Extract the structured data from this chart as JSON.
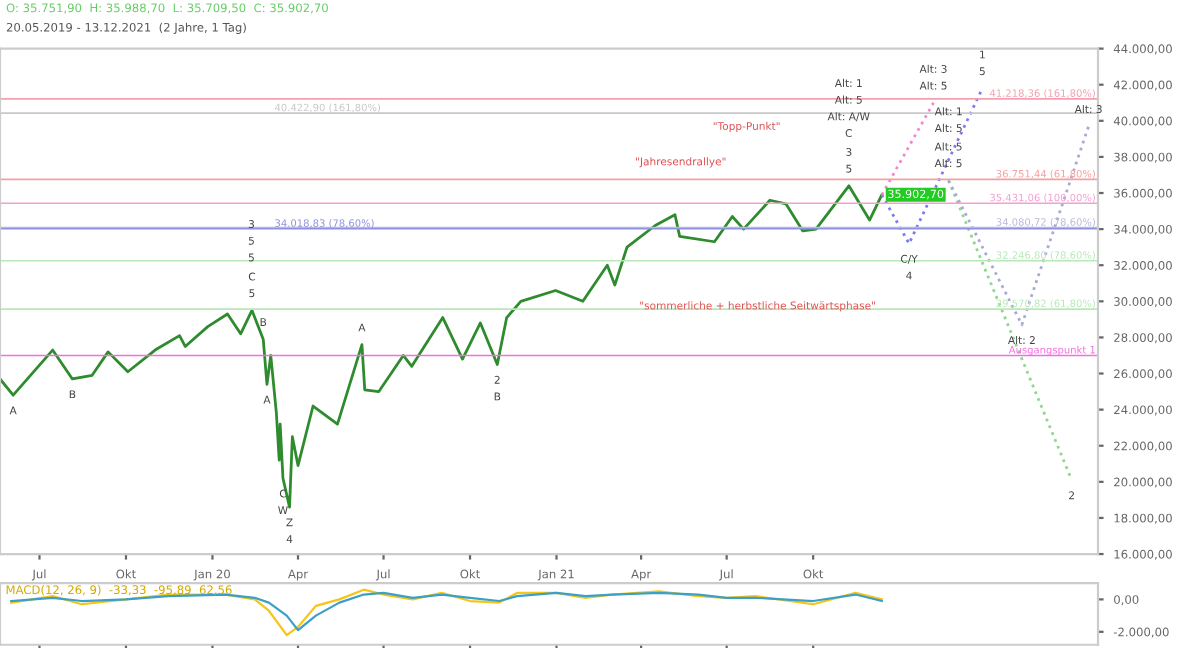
{
  "chart_data": [
    {
      "type": "line",
      "title": "O: 35.751,90  H: 35.988,70  L: 35.709,50  C: 35.902,70",
      "subtitle": "20.05.2019 - 13.12.2021  (2 Jahre, 1 Tag)",
      "xlim": [
        "2019-05-20",
        "2022-07-31"
      ],
      "ylim": [
        16000,
        44000
      ],
      "xticks": [
        {
          "value": "2019-07-01",
          "label": "Jul"
        },
        {
          "value": "2019-10-01",
          "label": "Okt"
        },
        {
          "value": "2020-01-01",
          "label": "Jan 20"
        },
        {
          "value": "2020-04-01",
          "label": "Apr"
        },
        {
          "value": "2020-07-01",
          "label": "Jul"
        },
        {
          "value": "2020-10-01",
          "label": "Okt"
        },
        {
          "value": "2021-01-01",
          "label": "Jan 21"
        },
        {
          "value": "2021-04-01",
          "label": "Apr"
        },
        {
          "value": "2021-07-01",
          "label": "Jul"
        },
        {
          "value": "2021-10-01",
          "label": "Okt"
        }
      ],
      "yticks": [
        {
          "value": 16000,
          "label": "16.000,00"
        },
        {
          "value": 18000,
          "label": "18.000,00"
        },
        {
          "value": 20000,
          "label": "20.000,00"
        },
        {
          "value": 22000,
          "label": "22.000,00"
        },
        {
          "value": 24000,
          "label": "24.000,00"
        },
        {
          "value": 26000,
          "label": "26.000,00"
        },
        {
          "value": 28000,
          "label": "28.000,00"
        },
        {
          "value": 30000,
          "label": "30.000,00"
        },
        {
          "value": 32000,
          "label": "32.000,00"
        },
        {
          "value": 34000,
          "label": "34.000,00"
        },
        {
          "value": 36000,
          "label": "36.000,00"
        },
        {
          "value": 38000,
          "label": "38.000,00"
        },
        {
          "value": 40000,
          "label": "40.000,00"
        },
        {
          "value": 42000,
          "label": "42.000,00"
        },
        {
          "value": 44000,
          "label": "44.000,00"
        }
      ],
      "grid": false,
      "legend": false,
      "series": [
        {
          "color": "#2e8b2e",
          "x": [
            "2019-05-20",
            "2019-06-03",
            "2019-07-15",
            "2019-08-05",
            "2019-08-26",
            "2019-09-12",
            "2019-10-03",
            "2019-11-01",
            "2019-11-27",
            "2019-12-03",
            "2019-12-27",
            "2020-01-17",
            "2020-01-31",
            "2020-02-12",
            "2020-02-24",
            "2020-02-28",
            "2020-03-03",
            "2020-03-09",
            "2020-03-12",
            "2020-03-13",
            "2020-03-16",
            "2020-03-23",
            "2020-03-26",
            "2020-04-01",
            "2020-04-17",
            "2020-05-13",
            "2020-06-08",
            "2020-06-11",
            "2020-06-26",
            "2020-07-22",
            "2020-07-31",
            "2020-09-02",
            "2020-09-23",
            "2020-10-12",
            "2020-10-30",
            "2020-11-09",
            "2020-11-24",
            "2020-12-31",
            "2021-01-29",
            "2021-02-24",
            "2021-03-04",
            "2021-03-17",
            "2021-04-16",
            "2021-05-07",
            "2021-05-12",
            "2021-06-18",
            "2021-07-07",
            "2021-07-19",
            "2021-08-16",
            "2021-09-02",
            "2021-09-20",
            "2021-10-04",
            "2021-11-08",
            "2021-11-30",
            "2021-12-13"
          ],
          "values": [
            25700,
            24800,
            27300,
            25700,
            25900,
            27200,
            26100,
            27300,
            28100,
            27500,
            28600,
            29300,
            28200,
            29500,
            27900,
            25400,
            27000,
            23800,
            21200,
            23200,
            20200,
            18600,
            22500,
            20900,
            24200,
            23200,
            27600,
            25100,
            25000,
            27000,
            26400,
            29100,
            26800,
            28800,
            26500,
            29100,
            30000,
            30600,
            30000,
            32000,
            30900,
            33000,
            34200,
            34800,
            33600,
            33300,
            34700,
            34000,
            35600,
            35400,
            33900,
            34000,
            36400,
            34500,
            35900
          ]
        },
        {
          "color": "#7b7bef",
          "line_style": "dotted",
          "x": [
            "2021-12-13",
            "2022-01-11",
            "2022-03-30"
          ],
          "values": [
            35900,
            33200,
            41800
          ]
        },
        {
          "color": "#f08ad0",
          "line_style": "dotted",
          "x": [
            "2021-12-13",
            "2022-02-06"
          ],
          "values": [
            35900,
            41000
          ]
        },
        {
          "color": "#8fd88f",
          "line_style": "dotted",
          "x": [
            "2022-02-22",
            "2022-07-03"
          ],
          "values": [
            36700,
            20100
          ]
        },
        {
          "color": "#a9a9d9",
          "line_style": "dotted",
          "x": [
            "2022-02-22",
            "2022-05-11",
            "2022-07-21"
          ],
          "values": [
            36700,
            28700,
            39700
          ]
        }
      ],
      "ref_lines": [
        {
          "axis": "y",
          "value": 41218.36,
          "label": "41.218,36 (161,80%)",
          "color": "#f4a0b0"
        },
        {
          "axis": "y",
          "value": 40422.9,
          "label": "40.422,90 (161,80%)",
          "color": "#c8c8c8"
        },
        {
          "axis": "y",
          "value": 36751.44,
          "label": "36.751,44 (61,80%)",
          "color": "#f4a0a0"
        },
        {
          "axis": "y",
          "value": 35431.06,
          "label": "35.431,06 (100,00%)",
          "color": "#f4a0d0"
        },
        {
          "axis": "y",
          "value": 34080.72,
          "label": "34.080,72 (78,60%)",
          "color": "#b8b8d8"
        },
        {
          "axis": "y",
          "value": 34018.83,
          "label": "34.018,83 (78,60%)",
          "color": "#9090e0"
        },
        {
          "axis": "y",
          "value": 32246.8,
          "label": "32.246,80 (78,60%)",
          "color": "#b8e8b8"
        },
        {
          "axis": "y",
          "value": 29570.82,
          "label": "29.570,82 (61,80%)",
          "color": "#b8e8b8"
        },
        {
          "axis": "y",
          "value": 27000,
          "label": "Ausgangspunkt 1",
          "color": "#f070e0"
        }
      ],
      "annotations": [
        {
          "text": "35.902,70",
          "x": "2021-12-13",
          "y": 35900
        },
        {
          "text": "5",
          "x": "2021-11-08",
          "y": 36400
        },
        {
          "text": "3",
          "x": "2021-11-08",
          "y": 36400
        },
        "C",
        "Alt: A/W",
        "Alt: 5",
        "Alt: 1",
        {
          "text": "Alt: 5",
          "x": "2022-02-06",
          "y": 41000
        },
        {
          "text": "Alt: 3",
          "x": "2022-02-06",
          "y": 41000
        },
        {
          "text": "5",
          "x": "2022-03-30",
          "y": 41800
        },
        {
          "text": "1",
          "x": "2022-03-30",
          "y": 41800
        },
        {
          "text": "Alt: 5",
          "x": "2022-02-22",
          "y": 36700
        },
        {
          "text": "Alt: 5",
          "x": "2022-02-22",
          "y": 36700
        },
        "Alt: 5",
        "Alt: 1",
        {
          "text": "Alt: 3",
          "x": "2022-07-21",
          "y": 39700
        },
        {
          "text": "Alt: 2",
          "x": "2022-05-11",
          "y": 28700
        },
        {
          "text": "2",
          "x": "2022-07-03",
          "y": 20100
        },
        {
          "text": "C/Y",
          "x": "2022-01-11",
          "y": 33200
        },
        {
          "text": "4",
          "x": "2022-01-11",
          "y": 33200
        },
        {
          "text": "5",
          "x": "2020-02-12",
          "y": 29500
        },
        {
          "text": "C",
          "x": "2020-02-12",
          "y": 29500
        },
        "5",
        "5",
        "3",
        {
          "text": "B",
          "x": "2020-02-24",
          "y": 27900
        },
        {
          "text": "A",
          "x": "2020-02-28",
          "y": 25400
        },
        {
          "text": "C",
          "x": "2020-03-16",
          "y": 20200
        },
        {
          "text": "W",
          "x": "2020-03-16",
          "y": 20200
        },
        {
          "text": "Z",
          "x": "2020-03-23",
          "y": 18600
        },
        {
          "text": "4",
          "x": "2020-03-23",
          "y": 18600
        },
        {
          "text": "A",
          "x": "2020-06-08",
          "y": 27600
        },
        {
          "text": "2",
          "x": "2020-10-30",
          "y": 26500
        },
        {
          "text": "B",
          "x": "2020-10-30",
          "y": 26500
        },
        {
          "text": "A",
          "x": "2019-06-03",
          "y": 24800
        },
        {
          "text": "B",
          "x": "2019-08-05",
          "y": 25700
        },
        "\"Jahresendrallye\"",
        "\"Topp-Punkt\"",
        "\"sommerliche + herbstliche Seitwärtsphase\""
      ]
    },
    {
      "type": "line",
      "title": "MACD(12, 26, 9)  -33,33  -95,89  62,56",
      "tick_labels": "y",
      "xlim": [
        "2019-05-20",
        "2022-07-31"
      ],
      "ylim": [
        -2800,
        1000
      ],
      "yticks": [
        {
          "value": 0,
          "label": "0,00"
        },
        {
          "value": -2000,
          "label": "-2.000,00"
        }
      ],
      "xticks": [
        {
          "value": "2019-07-01",
          "label": null
        },
        {
          "value": "2019-10-01",
          "label": null
        },
        {
          "value": "2020-01-01",
          "label": null
        },
        {
          "value": "2020-04-01",
          "label": null
        },
        {
          "value": "2020-07-01",
          "label": null
        },
        {
          "value": "2020-10-01",
          "label": null
        },
        {
          "value": "2021-01-01",
          "label": null
        },
        {
          "value": "2021-04-01",
          "label": null
        },
        {
          "value": "2021-07-01",
          "label": null
        },
        {
          "value": "2021-10-01",
          "label": null
        }
      ],
      "grid": false,
      "legend": false,
      "x": [
        "2019-06-01",
        "2019-07-15",
        "2019-08-15",
        "2019-10-01",
        "2019-11-15",
        "2020-01-15",
        "2020-02-15",
        "2020-03-01",
        "2020-03-20",
        "2020-04-01",
        "2020-04-20",
        "2020-05-15",
        "2020-06-10",
        "2020-07-01",
        "2020-08-01",
        "2020-09-01",
        "2020-10-01",
        "2020-11-01",
        "2020-11-20",
        "2021-01-01",
        "2021-02-01",
        "2021-03-01",
        "2021-04-20",
        "2021-06-01",
        "2021-07-01",
        "2021-08-01",
        "2021-10-01",
        "2021-11-15",
        "2021-12-13"
      ],
      "series": [
        {
          "color": "#f5c518",
          "values": [
            -200,
            200,
            -300,
            0,
            300,
            300,
            0,
            -700,
            -2200,
            -1700,
            -400,
            0,
            600,
            300,
            0,
            400,
            -100,
            -200,
            400,
            400,
            100,
            300,
            500,
            200,
            100,
            200,
            -300,
            400,
            0
          ]
        },
        {
          "color": "#3aa0c8",
          "values": [
            -100,
            100,
            -100,
            0,
            200,
            300,
            100,
            -200,
            -1000,
            -1900,
            -1000,
            -200,
            300,
            400,
            100,
            300,
            100,
            -100,
            200,
            400,
            200,
            300,
            400,
            300,
            100,
            100,
            -100,
            300,
            -100
          ]
        }
      ]
    }
  ]
}
